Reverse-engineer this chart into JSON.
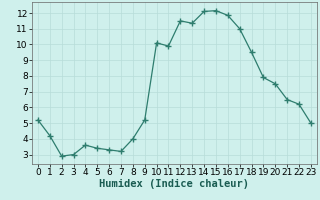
{
  "x": [
    0,
    1,
    2,
    3,
    4,
    5,
    6,
    7,
    8,
    9,
    10,
    11,
    12,
    13,
    14,
    15,
    16,
    17,
    18,
    19,
    20,
    21,
    22,
    23
  ],
  "y": [
    5.2,
    4.2,
    2.9,
    3.0,
    3.6,
    3.4,
    3.3,
    3.2,
    4.0,
    5.2,
    10.1,
    9.9,
    11.5,
    11.35,
    12.1,
    12.15,
    11.85,
    11.0,
    9.5,
    7.9,
    7.5,
    6.5,
    6.2,
    5.0
  ],
  "line_color": "#2e7d6e",
  "marker": "+",
  "marker_color": "#2e7d6e",
  "background_color": "#cff0ec",
  "grid_color": "#b8ddd9",
  "xlabel": "Humidex (Indice chaleur)",
  "xlim": [
    -0.5,
    23.5
  ],
  "ylim": [
    2.4,
    12.7
  ],
  "yticks": [
    3,
    4,
    5,
    6,
    7,
    8,
    9,
    10,
    11,
    12
  ],
  "xticks": [
    0,
    1,
    2,
    3,
    4,
    5,
    6,
    7,
    8,
    9,
    10,
    11,
    12,
    13,
    14,
    15,
    16,
    17,
    18,
    19,
    20,
    21,
    22,
    23
  ],
  "xlabel_fontsize": 7.5,
  "tick_fontsize": 6.5,
  "line_width": 0.9,
  "marker_size": 4
}
